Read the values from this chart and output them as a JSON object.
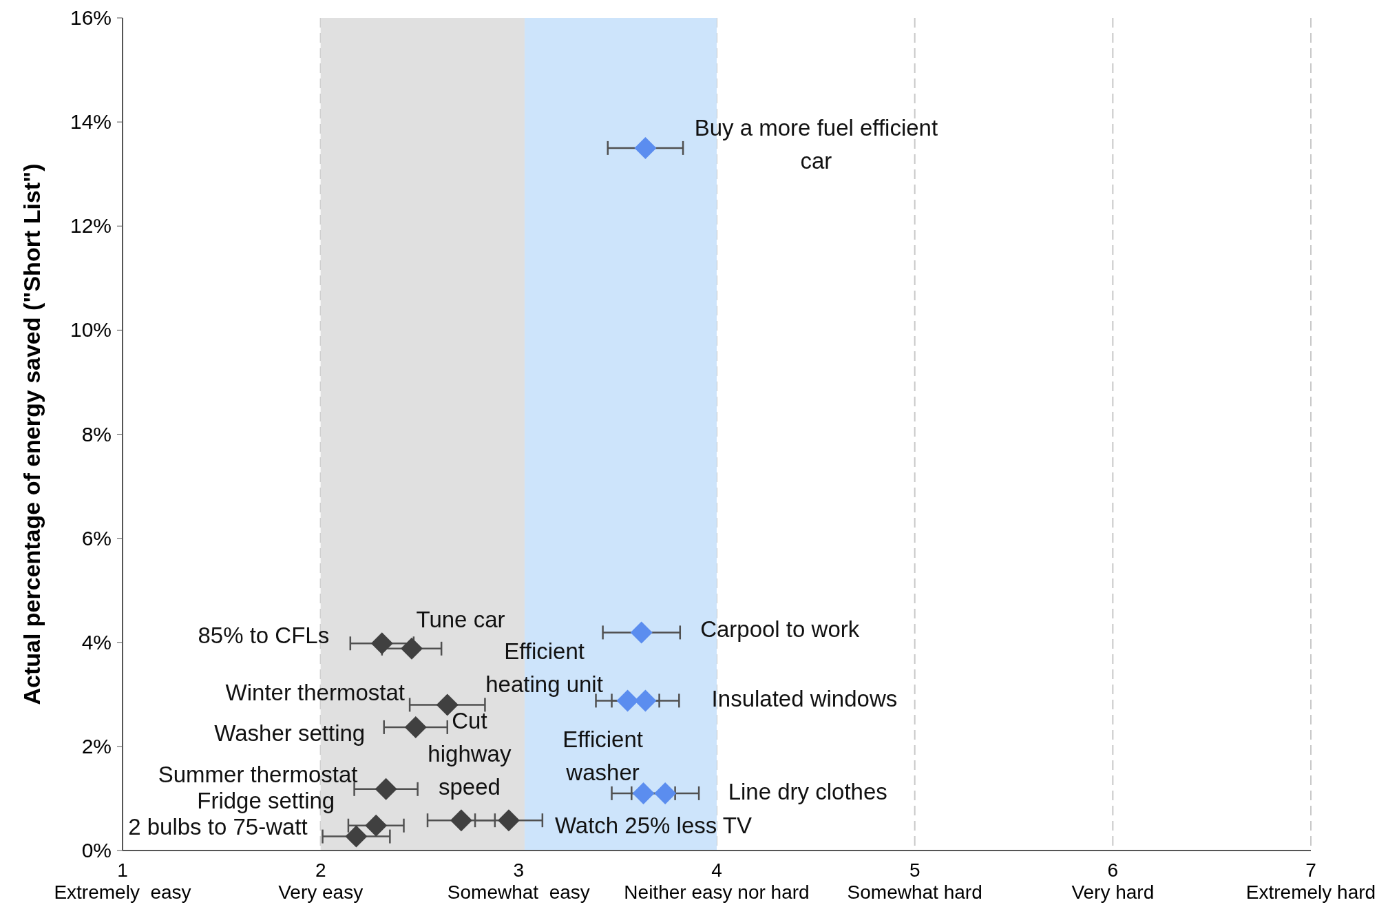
{
  "chart_data": {
    "type": "scatter",
    "ylabel": "Actual percentage of energy saved (\"Short List\")",
    "xlim": [
      1,
      7
    ],
    "ylim": [
      0,
      16
    ],
    "xticks": [
      {
        "value": 1,
        "label": "1\nExtremely  easy"
      },
      {
        "value": 2,
        "label": "2\nVery easy"
      },
      {
        "value": 3,
        "label": "3\nSomewhat  easy"
      },
      {
        "value": 4,
        "label": "4\nNeither easy nor hard"
      },
      {
        "value": 5,
        "label": "5\nSomewhat hard"
      },
      {
        "value": 6,
        "label": "6\nVery hard"
      },
      {
        "value": 7,
        "label": "7\nExtremely hard"
      }
    ],
    "yticks": [
      {
        "value": 0,
        "label": "0%"
      },
      {
        "value": 2,
        "label": "2%"
      },
      {
        "value": 4,
        "label": "4%"
      },
      {
        "value": 6,
        "label": "6%"
      },
      {
        "value": 8,
        "label": "8%"
      },
      {
        "value": 10,
        "label": "10%"
      },
      {
        "value": 12,
        "label": "12%"
      },
      {
        "value": 14,
        "label": "14%"
      },
      {
        "value": 16,
        "label": "16%"
      }
    ],
    "grid": "x",
    "marker": "diamond",
    "bands": [
      {
        "axis": "x",
        "from": 2,
        "to": 3.03,
        "color": "#e0e0e0"
      },
      {
        "axis": "x",
        "from": 3.03,
        "to": 4,
        "color": "#cde4fb"
      }
    ],
    "series": [
      {
        "color": "#404040",
        "x": [
          2.31,
          2.46,
          2.64,
          2.48,
          2.33,
          2.28,
          2.18,
          2.71,
          2.95
        ],
        "values": [
          3.98,
          3.88,
          2.8,
          2.37,
          1.18,
          0.48,
          0.27,
          0.58,
          0.58
        ],
        "xerrors": [
          0.16,
          0.15,
          0.19,
          0.16,
          0.16,
          0.14,
          0.17,
          0.17,
          0.17
        ]
      },
      {
        "color": "#5b8def",
        "x": [
          3.64,
          3.62,
          3.55,
          3.64,
          3.63,
          3.74
        ],
        "values": [
          13.5,
          4.19,
          2.88,
          2.88,
          1.1,
          1.1
        ],
        "xerrors": [
          0.19,
          0.195,
          0.16,
          0.17,
          0.16,
          0.17
        ]
      }
    ],
    "annotations": [
      {
        "text": "85% to CFLs",
        "x": 2.31,
        "y": 3.98
      },
      {
        "text": "Tune car",
        "x": 2.46,
        "y": 3.88
      },
      {
        "text": "Efficient\nheating unit",
        "x": 3.55,
        "y": 2.88
      },
      {
        "text": "Winter thermostat",
        "x": 2.64,
        "y": 2.8
      },
      {
        "text": "Washer setting",
        "x": 2.48,
        "y": 2.37
      },
      {
        "text": "Cut\nhighway\nspeed",
        "x": 2.71,
        "y": 0.58
      },
      {
        "text": "Efficient\nwasher",
        "x": 3.63,
        "y": 1.1
      },
      {
        "text": "Summer thermostat",
        "x": 2.33,
        "y": 1.18
      },
      {
        "text": "Fridge setting",
        "x": 2.28,
        "y": 0.48
      },
      {
        "text": "2 bulbs to 75-watt",
        "x": 2.18,
        "y": 0.27
      },
      {
        "text": "Watch 25% less TV",
        "x": 2.95,
        "y": 0.58
      },
      {
        "text": "Carpool to work",
        "x": 3.62,
        "y": 4.19
      },
      {
        "text": "Insulated windows",
        "x": 3.64,
        "y": 2.88
      },
      {
        "text": "Line dry clothes",
        "x": 3.74,
        "y": 1.1
      },
      {
        "text": "Buy a more fuel efficient\ncar",
        "x": 3.64,
        "y": 13.5
      }
    ]
  }
}
